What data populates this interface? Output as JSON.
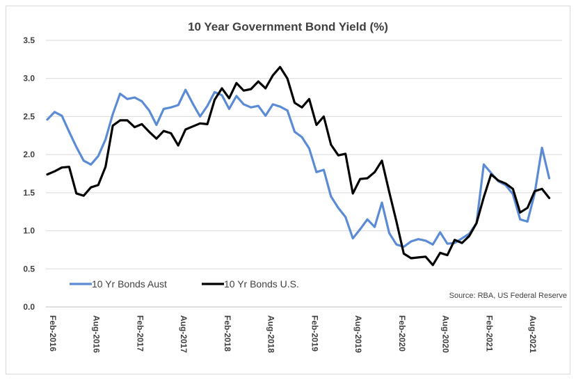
{
  "chart_data": {
    "type": "line",
    "title": "10 Year Government Bond Yield (%)",
    "xlabel": "",
    "ylabel": "",
    "ylim": [
      0,
      3.5
    ],
    "yticks": [
      "0.0",
      "0.5",
      "1.0",
      "1.5",
      "2.0",
      "2.5",
      "3.0",
      "3.5"
    ],
    "grid": true,
    "legend_position": "bottom-left inside plot",
    "x_tick_labels": [
      "Feb-2016",
      "Aug-2016",
      "Feb-2017",
      "Aug-2017",
      "Feb-2018",
      "Aug-2018",
      "Feb-2019",
      "Aug-2019",
      "Feb-2020",
      "Aug-2020",
      "Feb-2021",
      "Aug-2021"
    ],
    "x_start": "2016-02",
    "x_end": "2021-12",
    "annotation": "Source: RBA, US Federal Reserve",
    "series": [
      {
        "name": "10 Yr Bonds Aust",
        "color": "#5b8bd5",
        "values": [
          2.46,
          2.56,
          2.51,
          2.3,
          2.1,
          1.92,
          1.87,
          1.98,
          2.2,
          2.53,
          2.8,
          2.73,
          2.75,
          2.7,
          2.58,
          2.39,
          2.6,
          2.62,
          2.65,
          2.85,
          2.67,
          2.5,
          2.64,
          2.82,
          2.78,
          2.6,
          2.77,
          2.66,
          2.62,
          2.64,
          2.51,
          2.66,
          2.63,
          2.58,
          2.3,
          2.23,
          2.08,
          1.77,
          1.8,
          1.45,
          1.3,
          1.18,
          0.9,
          1.02,
          1.15,
          1.05,
          1.37,
          0.97,
          0.82,
          0.79,
          0.86,
          0.89,
          0.87,
          0.82,
          0.98,
          0.83,
          0.84,
          0.9,
          0.96,
          1.1,
          1.87,
          1.76,
          1.65,
          1.6,
          1.48,
          1.15,
          1.12,
          1.49,
          2.09,
          1.69
        ]
      },
      {
        "name": "10 Yr Bonds U.S.",
        "color": "#000000",
        "values": [
          1.74,
          1.78,
          1.83,
          1.84,
          1.49,
          1.46,
          1.57,
          1.6,
          1.84,
          2.38,
          2.45,
          2.45,
          2.36,
          2.4,
          2.3,
          2.21,
          2.31,
          2.28,
          2.12,
          2.33,
          2.37,
          2.41,
          2.4,
          2.72,
          2.87,
          2.74,
          2.94,
          2.84,
          2.86,
          2.96,
          2.87,
          3.04,
          3.15,
          3.0,
          2.68,
          2.62,
          2.73,
          2.39,
          2.5,
          2.13,
          1.99,
          2.01,
          1.49,
          1.68,
          1.69,
          1.77,
          1.92,
          1.51,
          1.12,
          0.7,
          0.64,
          0.65,
          0.66,
          0.55,
          0.71,
          0.68,
          0.88,
          0.84,
          0.93,
          1.1,
          1.44,
          1.74,
          1.66,
          1.62,
          1.55,
          1.24,
          1.3,
          1.52,
          1.55,
          1.43
        ]
      }
    ]
  }
}
